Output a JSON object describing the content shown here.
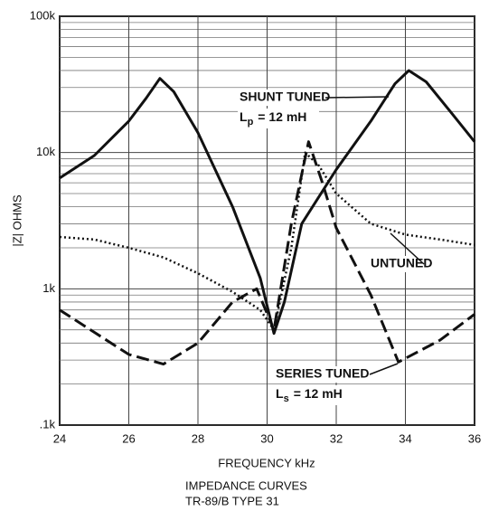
{
  "chart_data": {
    "type": "line",
    "y_label": "|Z| OHMS",
    "x_label": "FREQUENCY  kHz",
    "footer": [
      "IMPEDANCE CURVES",
      "TR-89/B TYPE 31"
    ],
    "log_y": true,
    "grid": true,
    "xlim": [
      24,
      36
    ],
    "xticks": [
      24,
      26,
      28,
      30,
      32,
      34,
      36
    ],
    "ylim": [
      100,
      100000
    ],
    "yticks": [
      {
        "value": 100,
        "label": ".1k"
      },
      {
        "value": 1000,
        "label": "1k"
      },
      {
        "value": 10000,
        "label": "10k"
      },
      {
        "value": 100000,
        "label": "100k"
      }
    ],
    "minor_yticks": [
      200,
      300,
      400,
      500,
      600,
      700,
      800,
      900,
      2000,
      3000,
      4000,
      5000,
      6000,
      7000,
      8000,
      9000,
      20000,
      30000,
      40000,
      50000,
      60000,
      70000,
      80000,
      90000
    ],
    "series": [
      {
        "name": "SHUNT TUNED",
        "color": "#111111",
        "dash": "solid",
        "inductance": {
          "symbol": "L",
          "subscript": "p",
          "text": "= 12 mH"
        },
        "x": [
          24,
          25,
          26,
          26.5,
          26.9,
          27.3,
          28,
          29,
          29.8,
          30.2,
          30.5,
          31,
          32,
          33,
          33.7,
          34.1,
          34.6,
          35.3,
          36
        ],
        "values": [
          6500,
          9500,
          17000,
          25000,
          35000,
          28000,
          14000,
          4000,
          1200,
          470,
          800,
          3000,
          7500,
          17000,
          32000,
          40000,
          33000,
          20000,
          12000
        ]
      },
      {
        "name": "UNTUNED",
        "color": "#111111",
        "dash": "dotted",
        "x": [
          24,
          25,
          26,
          27,
          28,
          29,
          29.8,
          30.2,
          30.7,
          31.1,
          31.5,
          32,
          33,
          34,
          35,
          36
        ],
        "values": [
          2400,
          2300,
          2000,
          1700,
          1300,
          950,
          700,
          500,
          2000,
          10000,
          8000,
          5000,
          3000,
          2500,
          2300,
          2100
        ]
      },
      {
        "name": "SERIES TUNED",
        "color": "#111111",
        "dash": "dashed",
        "inductance": {
          "symbol": "L",
          "subscript": "s",
          "text": "= 12 mH"
        },
        "x": [
          24,
          25,
          26,
          27,
          28,
          29,
          29.7,
          30.2,
          30.7,
          31.2,
          31.6,
          32,
          33,
          33.8,
          35,
          36
        ],
        "values": [
          700,
          480,
          330,
          280,
          400,
          800,
          1000,
          500,
          3000,
          12000,
          6000,
          2800,
          900,
          290,
          420,
          650
        ]
      }
    ]
  }
}
